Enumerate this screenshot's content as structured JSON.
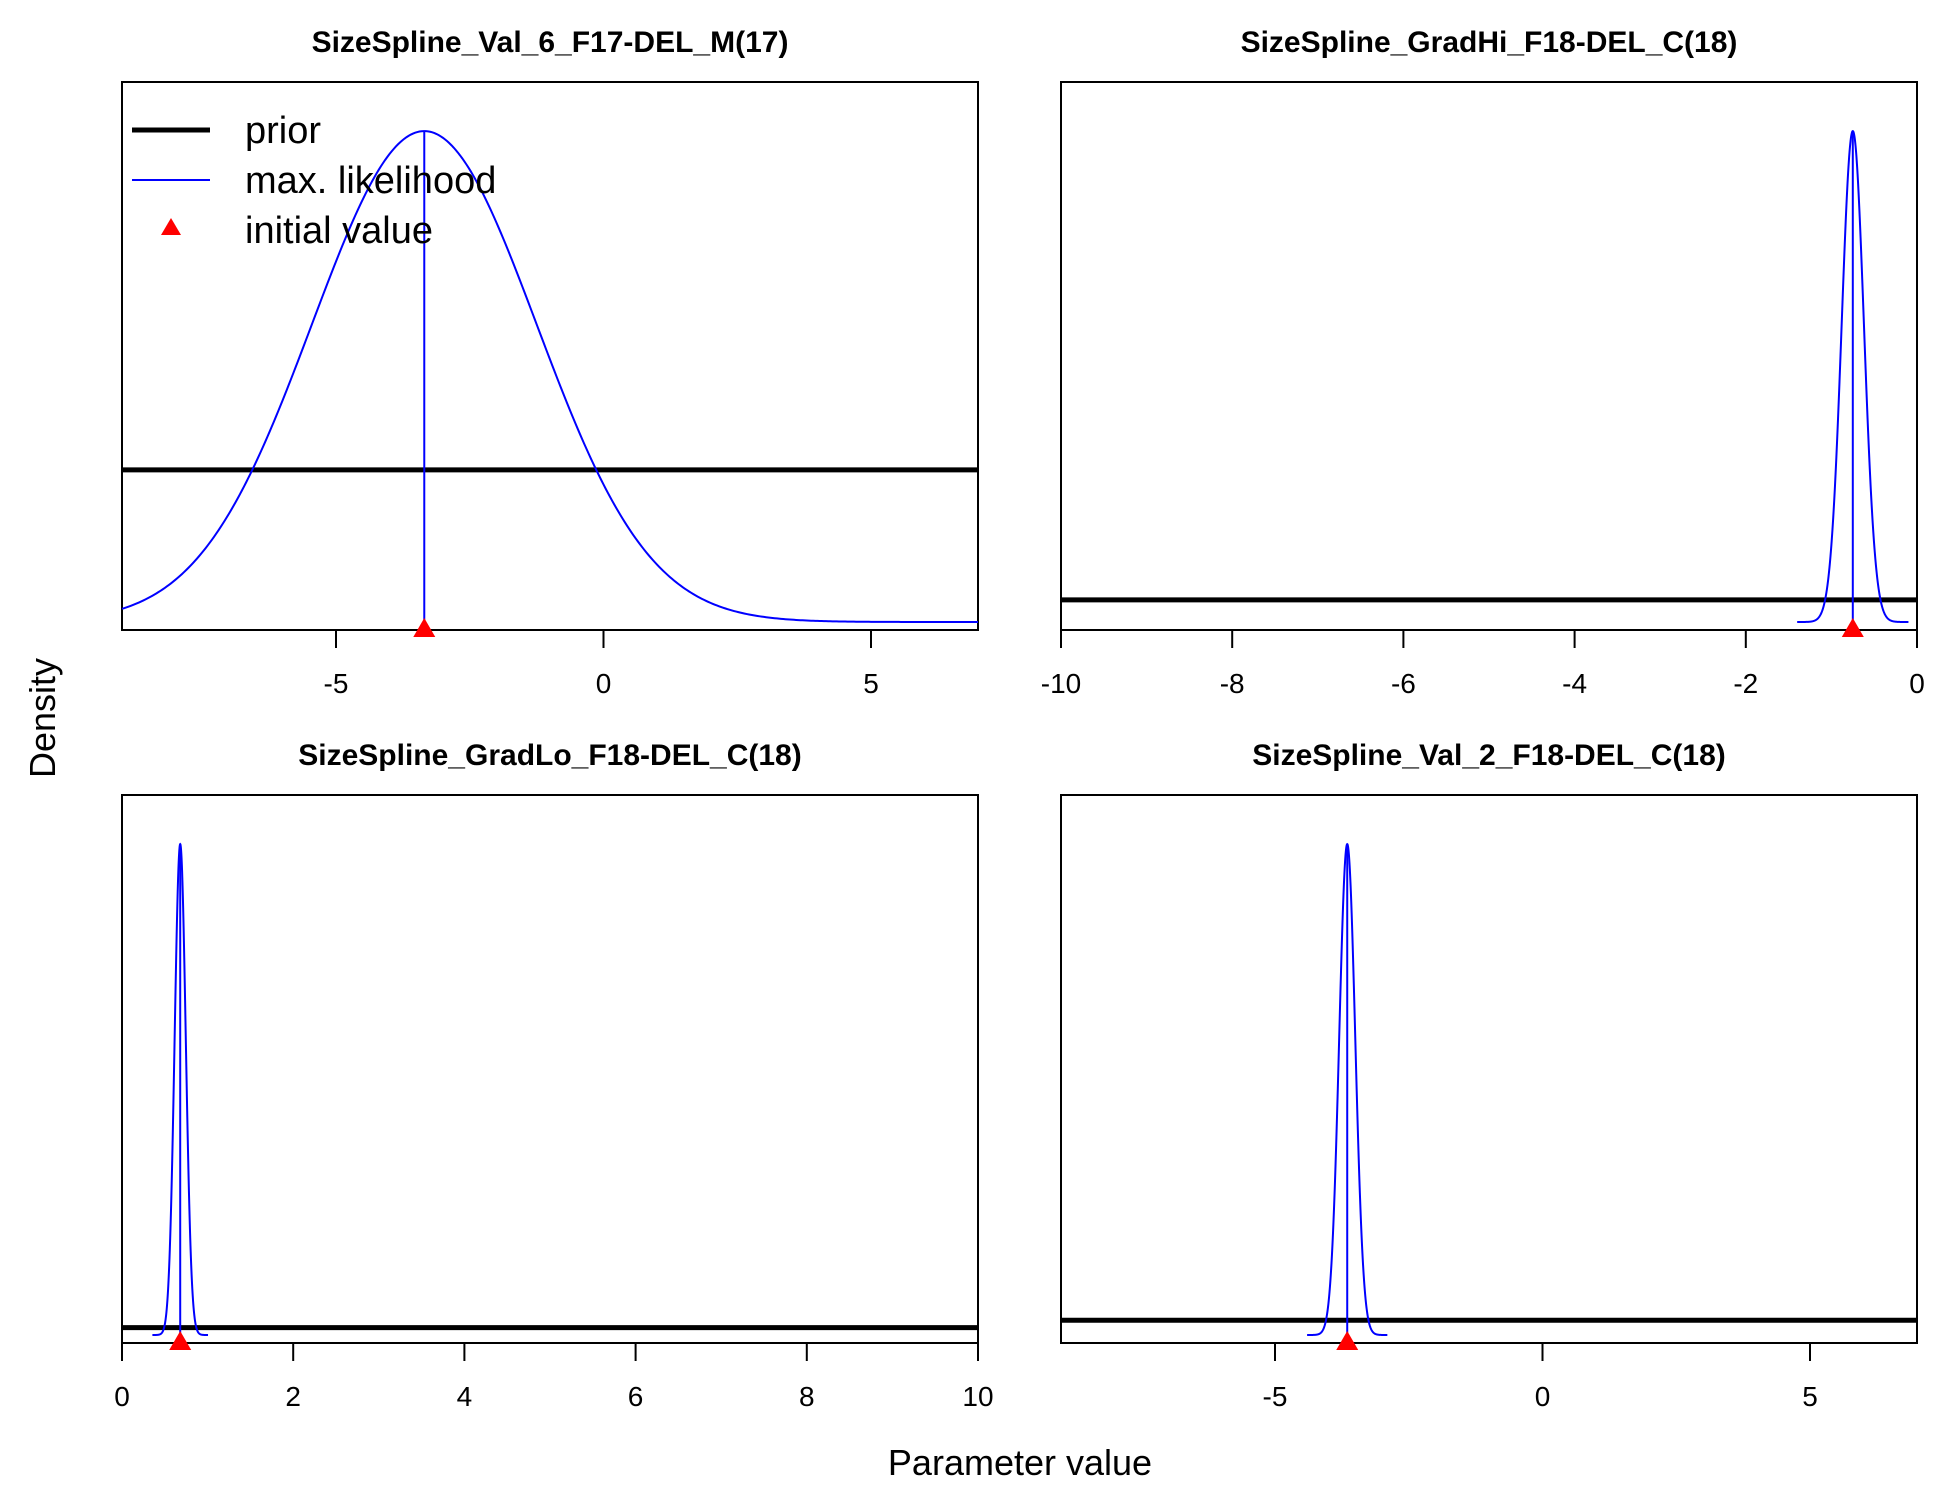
{
  "figure": {
    "xlabel": "Parameter value",
    "ylabel": "Density",
    "legend": {
      "placement": "top-left of first panel",
      "entries": [
        {
          "label": "prior",
          "color": "#000000",
          "style": "thick-line"
        },
        {
          "label": "max. likelihood",
          "color": "#0000ff",
          "style": "line"
        },
        {
          "label": "initial value",
          "color": "#ff0000",
          "style": "triangle"
        }
      ]
    }
  },
  "chart_data": [
    {
      "type": "line",
      "title": "SizeSpline_Val_6_F17-DEL_M(17)",
      "xlim": [
        -9,
        7
      ],
      "xticks": [
        -5,
        0,
        5
      ],
      "tick_labels": [
        "-5",
        "0",
        "5"
      ],
      "ylim": [
        0,
        1.1
      ],
      "prior_level": 0.31,
      "mle": {
        "mean": -3.35,
        "sd": 2.1,
        "peak": 1.0
      },
      "initial_value": -3.35,
      "grid": false
    },
    {
      "type": "line",
      "title": "SizeSpline_GradHi_F18-DEL_C(18)",
      "xlim": [
        -10,
        0
      ],
      "xticks": [
        -10,
        -8,
        -6,
        -4,
        -2,
        0
      ],
      "tick_labels": [
        "-10",
        "-8",
        "-6",
        "-4",
        "-2",
        "0"
      ],
      "ylim": [
        0,
        1.1
      ],
      "prior_level": 0.045,
      "mle": {
        "mean": -0.75,
        "sd": 0.13,
        "peak": 1.0
      },
      "initial_value": -0.75,
      "grid": false
    },
    {
      "type": "line",
      "title": "SizeSpline_GradLo_F18-DEL_C(18)",
      "xlim": [
        0,
        10
      ],
      "xticks": [
        0,
        2,
        4,
        6,
        8,
        10
      ],
      "tick_labels": [
        "0",
        "2",
        "4",
        "6",
        "8",
        "10"
      ],
      "ylim": [
        0,
        1.1
      ],
      "prior_level": 0.015,
      "mle": {
        "mean": 0.68,
        "sd": 0.065,
        "peak": 1.0
      },
      "initial_value": 0.68,
      "grid": false
    },
    {
      "type": "line",
      "title": "SizeSpline_Val_2_F18-DEL_C(18)",
      "xlim": [
        -9,
        7
      ],
      "xticks": [
        -5,
        0,
        5
      ],
      "tick_labels": [
        "-5",
        "0",
        "5"
      ],
      "ylim": [
        0,
        1.1
      ],
      "prior_level": 0.03,
      "mle": {
        "mean": -3.65,
        "sd": 0.15,
        "peak": 1.0
      },
      "initial_value": -3.65,
      "grid": false
    }
  ]
}
